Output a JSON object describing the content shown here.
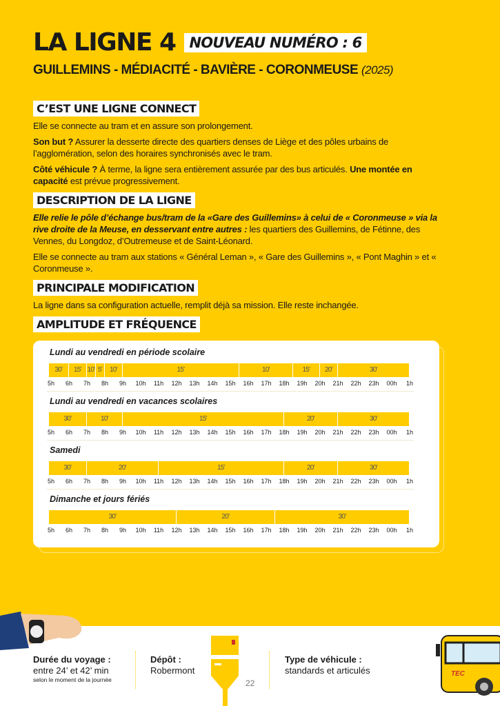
{
  "header": {
    "title": "LA LIGNE 4",
    "new_number": "NOUVEAU NUMÉRO : 6",
    "route": "GUILLEMINS - MÉDIACITÉ - BAVIÈRE - CORONMEUSE",
    "year": "(2025)"
  },
  "sections": {
    "connect": {
      "heading": "C’EST UNE LIGNE CONNECT",
      "p1": "Elle se connecte au tram et en assure son prolongement.",
      "p2_bold": "Son but ?",
      "p2": " Assurer la desserte directe des quartiers denses de Liège et des pôles urbains de l’agglomération, selon des horaires synchronisés avec le tram.",
      "p3_bold": "Côté véhicule ?",
      "p3": " À terme, la ligne sera entièrement assurée par des bus articulés. ",
      "p3_bold2": "Une montée en capacité",
      "p3_end": " est prévue progressivement."
    },
    "description": {
      "heading": "DESCRIPTION DE LA LIGNE",
      "p1_bi": "Elle relie le pôle d’échange bus/tram de la «Gare des Guillemins» à celui de « Coronmeuse » via la rive droite de la Meuse, en desservant entre autres :",
      "p1": " les quartiers des Guillemins, de Fétinne, des Vennes, du Longdoz, d’Outremeuse et de Saint-Léonard.",
      "p2": "Elle se connecte au tram aux stations « Général Leman », « Gare des Guillemins », « Pont Maghin » et « Coronmeuse »."
    },
    "modification": {
      "heading": "PRINCIPALE MODIFICATION",
      "p1": "La ligne dans sa configuration actuelle, remplit déjà sa mission. Elle reste inchangée."
    },
    "amplitude": {
      "heading": "AMPLITUDE ET FRÉQUENCE"
    }
  },
  "schedule": {
    "hours": [
      "5h",
      "6h",
      "7h",
      "8h",
      "9h",
      "10h",
      "11h",
      "12h",
      "13h",
      "14h",
      "15h",
      "16h",
      "17h",
      "18h",
      "19h",
      "20h",
      "21h",
      "22h",
      "23h",
      "00h",
      "1h"
    ],
    "rows": [
      {
        "title": "Lundi au vendredi en période scolaire",
        "segments": [
          [
            5,
            6,
            "30’"
          ],
          [
            6,
            7,
            "15’"
          ],
          [
            7,
            7.5,
            "10’"
          ],
          [
            7.5,
            8,
            "5’"
          ],
          [
            8,
            9,
            "10’"
          ],
          [
            9,
            15.5,
            "15’"
          ],
          [
            15.5,
            18.5,
            "10’"
          ],
          [
            18.5,
            20,
            "15’"
          ],
          [
            20,
            21,
            "20’"
          ],
          [
            21,
            25,
            "30’"
          ]
        ]
      },
      {
        "title": "Lundi au vendredi en vacances scolaires",
        "segments": [
          [
            5,
            7,
            "30’"
          ],
          [
            7,
            9,
            "10’"
          ],
          [
            9,
            18,
            "15’"
          ],
          [
            18,
            21,
            "20’"
          ],
          [
            21,
            25,
            "30’"
          ]
        ]
      },
      {
        "title": "Samedi",
        "segments": [
          [
            5,
            7,
            "30’"
          ],
          [
            7,
            11,
            "20’"
          ],
          [
            11,
            18,
            "15’"
          ],
          [
            18,
            21,
            "20’"
          ],
          [
            21,
            25,
            "30’"
          ]
        ]
      },
      {
        "title": "Dimanche et jours fériés",
        "segments": [
          [
            5,
            12,
            "30’"
          ],
          [
            12,
            17.5,
            "20’"
          ],
          [
            17.5,
            25,
            "30’"
          ]
        ]
      }
    ]
  },
  "footer": {
    "duration_label": "Durée du voyage :",
    "duration_value": "entre 24’ et 42’ min",
    "duration_note": "selon le moment de la journée",
    "depot_label": "Dépôt :",
    "depot_value": "Robermont",
    "page": "22",
    "vehicle_label": "Type de véhicule :",
    "vehicle_value": "standards et articulés",
    "bus_logo": "TEC"
  },
  "colors": {
    "brand_yellow": "#FFCC00"
  }
}
